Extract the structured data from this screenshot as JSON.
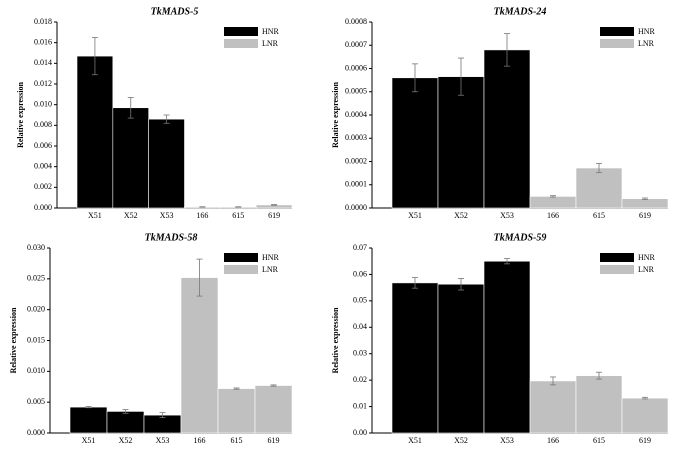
{
  "chart_data": [
    {
      "type": "bar",
      "title": "TkMADS-5",
      "ylabel": "Relative expression",
      "categories": [
        "X51",
        "X52",
        "X53",
        "166",
        "615",
        "619"
      ],
      "series": [
        {
          "name": "HNR",
          "color": "#000000",
          "values": [
            0.0147,
            0.0097,
            0.0086,
            null,
            null,
            null
          ],
          "errors": [
            0.0018,
            0.001,
            0.0004,
            null,
            null,
            null
          ]
        },
        {
          "name": "LNR",
          "color": "#c0c0c0",
          "values": [
            null,
            null,
            null,
            0.0001,
            0.0001,
            0.0003
          ],
          "errors": [
            null,
            null,
            null,
            2e-05,
            2e-05,
            3e-05
          ]
        }
      ],
      "ylim": [
        0,
        0.018
      ],
      "yticks": [
        {
          "value": 0,
          "label": "0.000"
        },
        {
          "value": 0.002,
          "label": "0.002"
        },
        {
          "value": 0.004,
          "label": "0.004"
        },
        {
          "value": 0.006,
          "label": "0.006"
        },
        {
          "value": 0.008,
          "label": "0.008"
        },
        {
          "value": 0.01,
          "label": "0.010"
        },
        {
          "value": 0.012,
          "label": "0.012"
        },
        {
          "value": 0.014,
          "label": "0.014"
        },
        {
          "value": 0.016,
          "label": "0.016"
        },
        {
          "value": 0.018,
          "label": "0.018"
        }
      ],
      "legend": "upper right"
    },
    {
      "type": "bar",
      "title": "TkMADS-24",
      "ylabel": "Relative expression",
      "categories": [
        "X51",
        "X52",
        "X53",
        "166",
        "615",
        "619"
      ],
      "series": [
        {
          "name": "HNR",
          "color": "#000000",
          "values": [
            0.00056,
            0.000565,
            0.00068,
            null,
            null,
            null
          ],
          "errors": [
            6e-05,
            8e-05,
            7e-05,
            null,
            null,
            null
          ]
        },
        {
          "name": "LNR",
          "color": "#c0c0c0",
          "values": [
            null,
            null,
            null,
            5e-05,
            0.000172,
            4e-05
          ],
          "errors": [
            null,
            null,
            null,
            3e-06,
            2e-05,
            3e-06
          ]
        }
      ],
      "ylim": [
        0,
        0.0008
      ],
      "yticks": [
        {
          "value": 0,
          "label": "0.0000"
        },
        {
          "value": 0.0001,
          "label": "0.0001"
        },
        {
          "value": 0.0002,
          "label": "0.0002"
        },
        {
          "value": 0.0003,
          "label": "0.0003"
        },
        {
          "value": 0.0004,
          "label": "0.0004"
        },
        {
          "value": 0.0005,
          "label": "0.0005"
        },
        {
          "value": 0.0006,
          "label": "0.0006"
        },
        {
          "value": 0.0007,
          "label": "0.0007"
        },
        {
          "value": 0.0008,
          "label": "0.0008"
        }
      ],
      "legend": "upper right"
    },
    {
      "type": "bar",
      "title": "TkMADS-58",
      "ylabel": "Relative expression",
      "categories": [
        "X51",
        "X52",
        "X53",
        "166",
        "615",
        "619"
      ],
      "series": [
        {
          "name": "HNR",
          "color": "#000000",
          "values": [
            0.0042,
            0.0035,
            0.0029,
            null,
            null,
            null
          ],
          "errors": [
            0.0001,
            0.0003,
            0.0004,
            null,
            null,
            null
          ]
        },
        {
          "name": "LNR",
          "color": "#c0c0c0",
          "values": [
            null,
            null,
            null,
            0.0252,
            0.0072,
            0.0077
          ],
          "errors": [
            null,
            null,
            null,
            0.003,
            0.0001,
            0.0001
          ]
        }
      ],
      "ylim": [
        0,
        0.03
      ],
      "yticks": [
        {
          "value": 0,
          "label": "0.000"
        },
        {
          "value": 0.005,
          "label": "0.005"
        },
        {
          "value": 0.01,
          "label": "0.010"
        },
        {
          "value": 0.015,
          "label": "0.015"
        },
        {
          "value": 0.02,
          "label": "0.020"
        },
        {
          "value": 0.025,
          "label": "0.025"
        },
        {
          "value": 0.03,
          "label": "0.030"
        }
      ],
      "legend": "upper right"
    },
    {
      "type": "bar",
      "title": "TkMADS-59",
      "ylabel": "Relative expression",
      "categories": [
        "X51",
        "X52",
        "X53",
        "166",
        "615",
        "619"
      ],
      "series": [
        {
          "name": "HNR",
          "color": "#000000",
          "values": [
            0.0568,
            0.0563,
            0.065,
            null,
            null,
            null
          ],
          "errors": [
            0.002,
            0.0022,
            0.001,
            null,
            null,
            null
          ]
        },
        {
          "name": "LNR",
          "color": "#c0c0c0",
          "values": [
            null,
            null,
            null,
            0.0197,
            0.0217,
            0.0132
          ],
          "errors": [
            null,
            null,
            null,
            0.0015,
            0.0013,
            0.0003
          ]
        }
      ],
      "ylim": [
        0,
        0.07
      ],
      "yticks": [
        {
          "value": 0,
          "label": "0.00"
        },
        {
          "value": 0.01,
          "label": "0.01"
        },
        {
          "value": 0.02,
          "label": "0.02"
        },
        {
          "value": 0.03,
          "label": "0.03"
        },
        {
          "value": 0.04,
          "label": "0.04"
        },
        {
          "value": 0.05,
          "label": "0.05"
        },
        {
          "value": 0.06,
          "label": "0.06"
        },
        {
          "value": 0.07,
          "label": "0.07"
        }
      ],
      "legend": "upper right"
    }
  ]
}
